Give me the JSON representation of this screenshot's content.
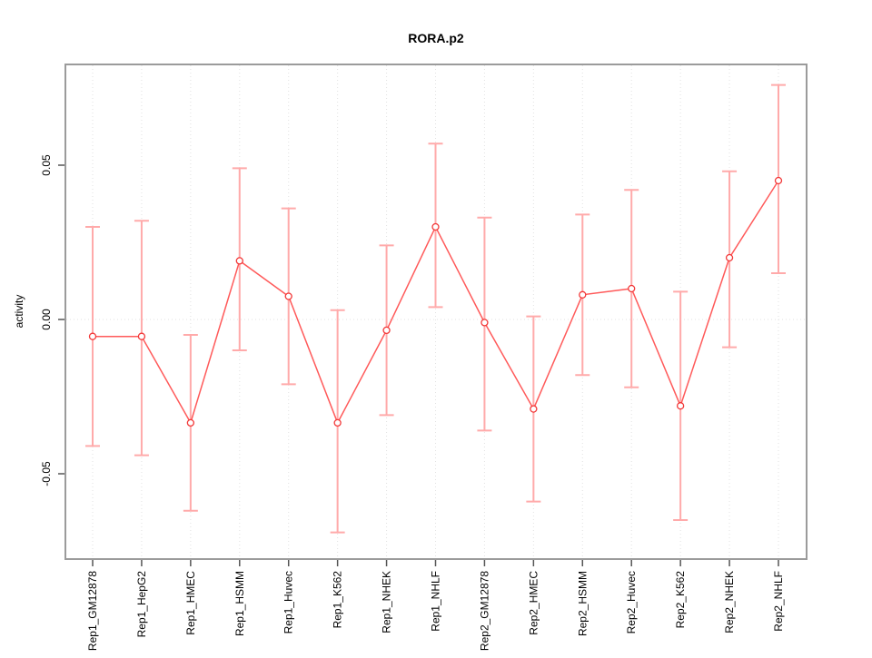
{
  "chart_data": {
    "type": "line",
    "title": "RORA.p2",
    "xlabel": "",
    "ylabel": "activity",
    "categories": [
      "Rep1_GM12878",
      "Rep1_HepG2",
      "Rep1_HMEC",
      "Rep1_HSMM",
      "Rep1_Huvec",
      "Rep1_K562",
      "Rep1_NHEK",
      "Rep1_NHLF",
      "Rep2_GM12878",
      "Rep2_HMEC",
      "Rep2_HSMM",
      "Rep2_Huvec",
      "Rep2_K562",
      "Rep2_NHEK",
      "Rep2_NHLF"
    ],
    "values": [
      -0.0055,
      -0.0055,
      -0.0335,
      0.019,
      0.0075,
      -0.0335,
      -0.0035,
      0.03,
      -0.001,
      -0.029,
      0.008,
      0.01,
      -0.028,
      0.02,
      0.045
    ],
    "error_upper": [
      0.03,
      0.032,
      -0.005,
      0.049,
      0.036,
      0.003,
      0.024,
      0.057,
      0.033,
      0.001,
      0.034,
      0.042,
      0.009,
      0.048,
      0.076
    ],
    "error_lower": [
      -0.041,
      -0.044,
      -0.062,
      -0.01,
      -0.021,
      -0.069,
      -0.031,
      0.004,
      -0.036,
      -0.059,
      -0.018,
      -0.022,
      -0.065,
      -0.009,
      0.015
    ],
    "ytick_values": [
      0.05,
      0.0,
      -0.05
    ],
    "ytick_labels": [
      "0.05",
      "0.00",
      "-0.05"
    ],
    "ylim": [
      -0.078,
      0.083
    ],
    "grid": "dotted vertical line at each category; dotted horizontal line at 0.00",
    "legend": "none",
    "marker": "open-circle",
    "colors": {
      "point_stroke": "#f23838",
      "line": "#ff5a5a",
      "error_bar": "#ffaaaa",
      "gridline": "#e2e2e2",
      "plot_border": "#9b9b9b",
      "tick": "#555555",
      "text": "#000000",
      "background": "#ffffff"
    }
  }
}
